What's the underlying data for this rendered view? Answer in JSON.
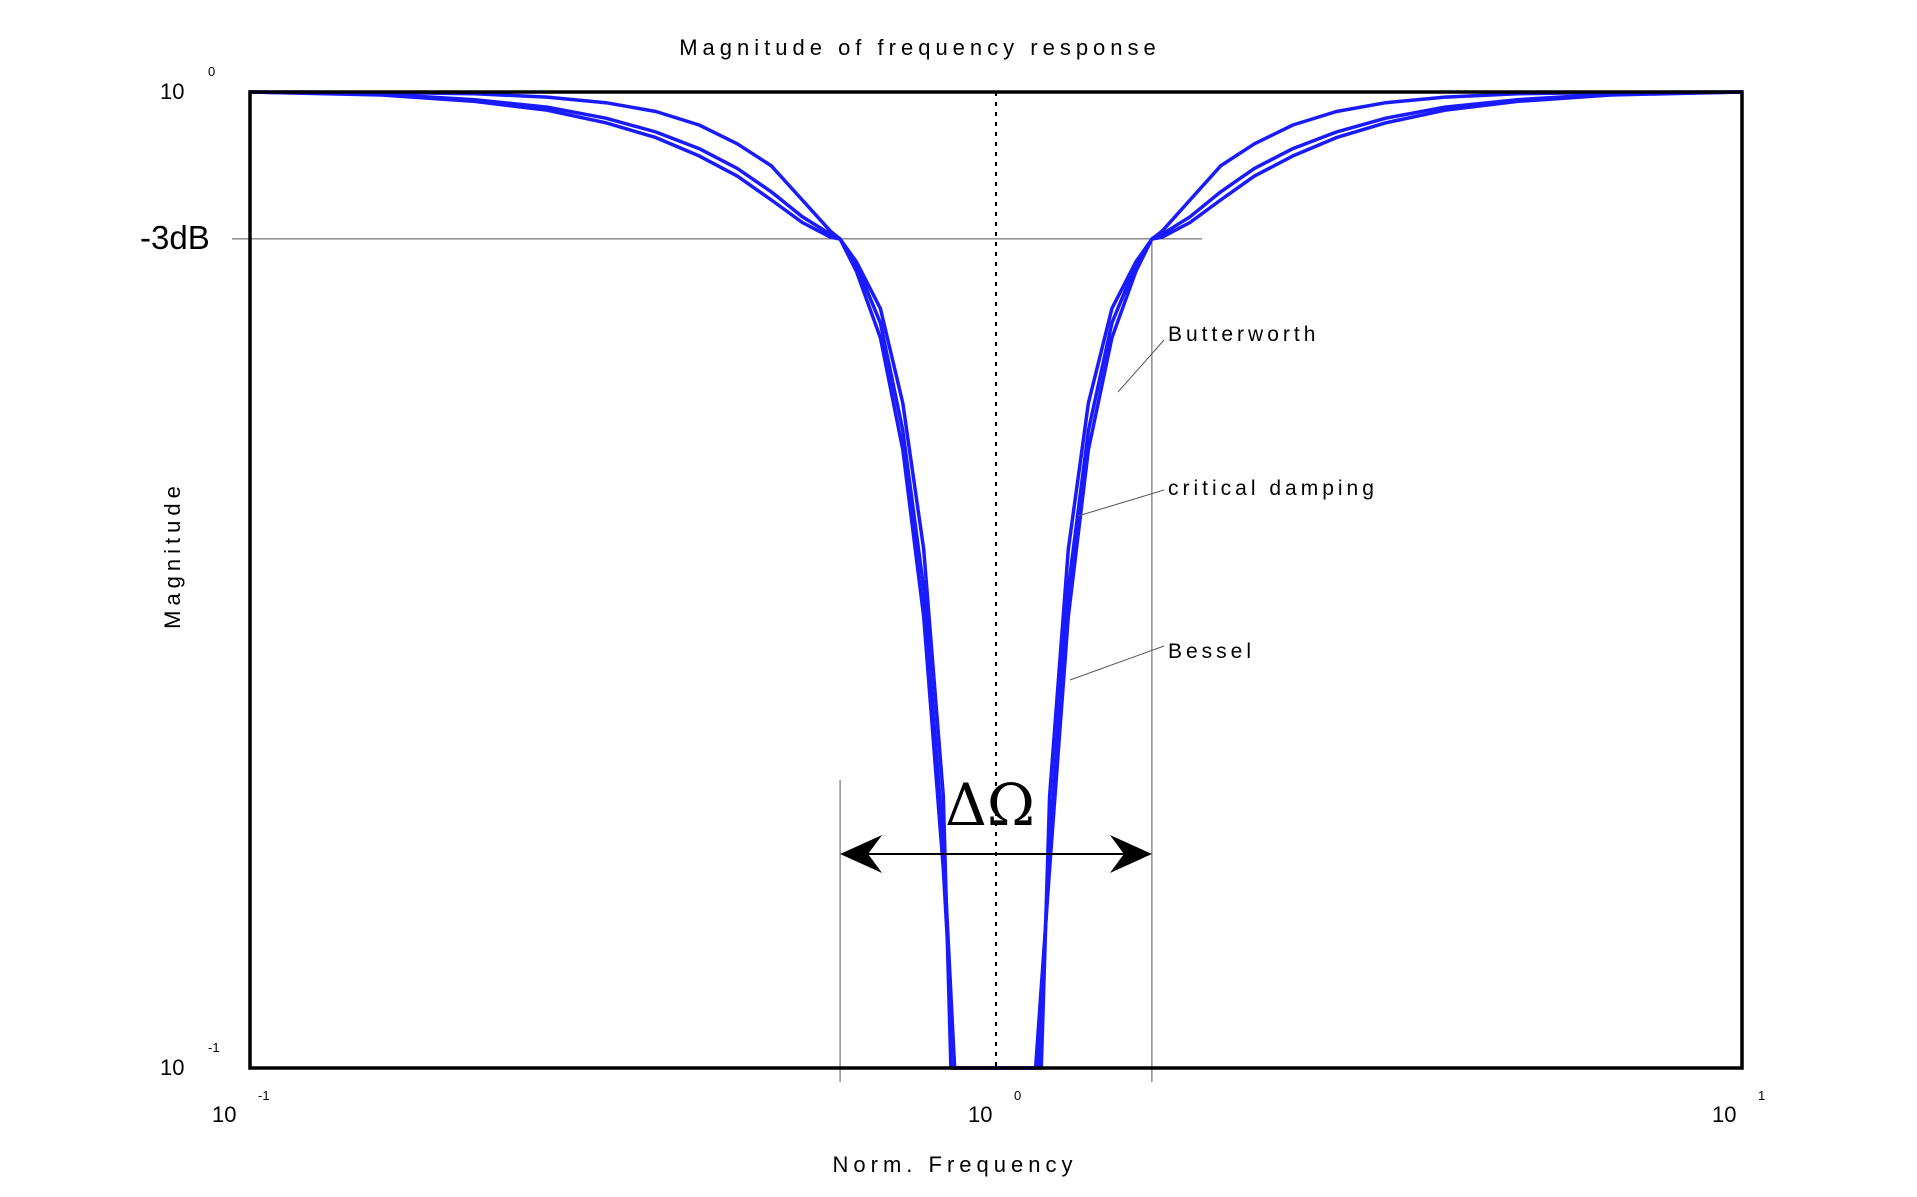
{
  "chart_data": {
    "type": "line",
    "title": "Magnitude of frequency response",
    "xlabel": "Norm. Frequency",
    "ylabel": "Magnitude",
    "xscale": "log",
    "yscale": "log",
    "xlim": [
      0.1,
      10
    ],
    "ylim": [
      0.1,
      1
    ],
    "x_ticks": [
      {
        "base": "10",
        "exp": "-1"
      },
      {
        "base": "10",
        "exp": "0"
      },
      {
        "base": "10",
        "exp": "1"
      }
    ],
    "y_ticks": [
      {
        "base": "10",
        "exp": "0"
      },
      {
        "base": "10",
        "exp": "-1"
      }
    ],
    "grid": false,
    "line_color": "#1a1aff",
    "reference": {
      "label": "-3dB",
      "value": 0.7071
    },
    "band_edges": [
      0.618,
      1.618
    ],
    "center_marker": 1.0,
    "bandwidth_label": "ΔΩ",
    "annotations": [
      "Butterworth",
      "critical damping",
      "Bessel"
    ],
    "series": [
      {
        "name": "Butterworth",
        "x": [
          0.1,
          0.15,
          0.2,
          0.25,
          0.3,
          0.35,
          0.4,
          0.45,
          0.5,
          0.55,
          0.6,
          0.618,
          0.65,
          0.7,
          0.75,
          0.8,
          0.85,
          0.87,
          1.15,
          1.18,
          1.25,
          1.33,
          1.43,
          1.54,
          1.618,
          1.67,
          1.82,
          2.0,
          2.22,
          2.5,
          2.86,
          3.33,
          4.0,
          5.0,
          6.67,
          10.0
        ],
        "y": [
          1.0,
          0.999,
          0.996,
          0.988,
          0.975,
          0.955,
          0.925,
          0.885,
          0.84,
          0.775,
          0.72,
          0.707,
          0.67,
          0.6,
          0.48,
          0.34,
          0.19,
          0.1,
          0.1,
          0.19,
          0.34,
          0.48,
          0.6,
          0.67,
          0.707,
          0.72,
          0.775,
          0.84,
          0.885,
          0.925,
          0.955,
          0.975,
          0.988,
          0.996,
          0.999,
          1.0
        ]
      },
      {
        "name": "critical damping",
        "x": [
          0.1,
          0.15,
          0.2,
          0.25,
          0.3,
          0.35,
          0.4,
          0.45,
          0.5,
          0.55,
          0.6,
          0.618,
          0.65,
          0.7,
          0.75,
          0.8,
          0.85,
          0.88,
          1.14,
          1.18,
          1.25,
          1.33,
          1.43,
          1.54,
          1.618,
          1.67,
          1.82,
          2.0,
          2.22,
          2.5,
          2.86,
          3.33,
          4.0,
          5.0,
          6.67,
          10.0
        ],
        "y": [
          1.0,
          0.995,
          0.982,
          0.965,
          0.94,
          0.91,
          0.875,
          0.835,
          0.79,
          0.745,
          0.715,
          0.707,
          0.665,
          0.58,
          0.45,
          0.31,
          0.17,
          0.1,
          0.1,
          0.17,
          0.31,
          0.45,
          0.58,
          0.665,
          0.707,
          0.715,
          0.745,
          0.79,
          0.835,
          0.875,
          0.91,
          0.94,
          0.965,
          0.982,
          0.995,
          1.0
        ]
      },
      {
        "name": "Bessel",
        "x": [
          0.1,
          0.15,
          0.2,
          0.25,
          0.3,
          0.35,
          0.4,
          0.45,
          0.5,
          0.55,
          0.6,
          0.618,
          0.65,
          0.7,
          0.75,
          0.8,
          0.85,
          0.88,
          1.13,
          1.18,
          1.25,
          1.33,
          1.43,
          1.54,
          1.618,
          1.67,
          1.82,
          2.0,
          2.22,
          2.5,
          2.86,
          3.33,
          4.0,
          5.0,
          6.67,
          10.0
        ],
        "y": [
          1.0,
          0.993,
          0.978,
          0.958,
          0.93,
          0.898,
          0.86,
          0.82,
          0.775,
          0.735,
          0.71,
          0.707,
          0.655,
          0.56,
          0.43,
          0.29,
          0.16,
          0.1,
          0.1,
          0.16,
          0.29,
          0.43,
          0.56,
          0.655,
          0.707,
          0.71,
          0.735,
          0.775,
          0.82,
          0.86,
          0.898,
          0.93,
          0.958,
          0.978,
          0.993,
          1.0
        ]
      }
    ]
  }
}
